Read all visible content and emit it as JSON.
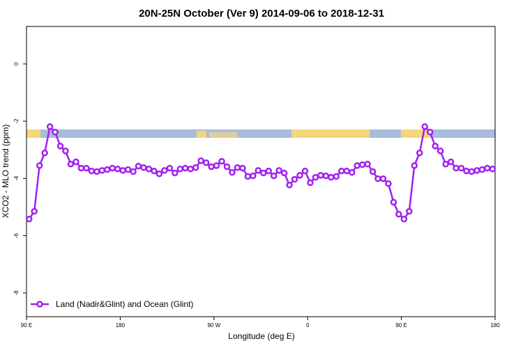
{
  "chart_data": {
    "type": "line",
    "title": "20N-25N October (Ver 9)   2014-09-06 to 2018-12-31",
    "xlabel": "Longitude (deg E)",
    "ylabel": "XCO2 - MLO trend (ppm)",
    "xlim": [
      90,
      540
    ],
    "ylim": [
      -8.83,
      1.31
    ],
    "xticks": [
      {
        "value": 90,
        "label": "90 E"
      },
      {
        "value": 180,
        "label": "180"
      },
      {
        "value": 270,
        "label": "90 W"
      },
      {
        "value": 360,
        "label": "0"
      },
      {
        "value": 450,
        "label": "90 E"
      },
      {
        "value": 540,
        "label": "180"
      }
    ],
    "yticks": [
      0,
      -2,
      -4,
      -6,
      -8
    ],
    "grid": false,
    "legend": "bottom-left",
    "x": [
      92.5,
      97.5,
      102.5,
      107.5,
      112.5,
      117.5,
      122.5,
      127.5,
      132.5,
      137.5,
      142.5,
      147.5,
      152.5,
      157.5,
      162.5,
      167.5,
      172.5,
      177.5,
      182.5,
      187.5,
      192.5,
      197.5,
      202.5,
      207.5,
      212.5,
      217.5,
      222.5,
      227.5,
      232.5,
      237.5,
      242.5,
      247.5,
      252.5,
      257.5,
      262.5,
      267.5,
      272.5,
      277.5,
      282.5,
      287.5,
      292.5,
      297.5,
      302.5,
      307.5,
      312.5,
      317.5,
      322.5,
      327.5,
      332.5,
      337.5,
      342.5,
      347.5,
      352.5,
      357.5,
      362.5,
      367.5,
      372.5,
      377.5,
      382.5,
      387.5,
      392.5,
      397.5,
      402.5,
      407.5,
      412.5,
      417.5,
      422.5,
      427.5,
      432.5,
      437.5,
      442.5,
      447.5,
      452.5,
      457.5,
      462.5,
      467.5,
      472.5,
      477.5,
      482.5,
      487.5,
      492.5,
      497.5,
      502.5,
      507.5,
      512.5,
      517.5,
      522.5,
      527.5,
      532.5,
      537.5
    ],
    "series": [
      {
        "name": "Land (Nadir&Glint) and Ocean (Glint)",
        "color": "#a020f0",
        "values": [
          -5.42,
          -5.15,
          -3.55,
          -3.11,
          -2.19,
          -2.38,
          -2.87,
          -3.04,
          -3.5,
          -3.42,
          -3.64,
          -3.64,
          -3.74,
          -3.76,
          -3.72,
          -3.69,
          -3.64,
          -3.67,
          -3.72,
          -3.69,
          -3.76,
          -3.57,
          -3.62,
          -3.67,
          -3.74,
          -3.84,
          -3.72,
          -3.64,
          -3.81,
          -3.67,
          -3.64,
          -3.67,
          -3.62,
          -3.38,
          -3.45,
          -3.59,
          -3.55,
          -3.4,
          -3.59,
          -3.79,
          -3.62,
          -3.64,
          -3.93,
          -3.91,
          -3.72,
          -3.81,
          -3.74,
          -3.91,
          -3.72,
          -3.81,
          -4.23,
          -4.03,
          -3.89,
          -3.74,
          -4.15,
          -3.96,
          -3.89,
          -3.91,
          -3.96,
          -3.93,
          -3.74,
          -3.74,
          -3.79,
          -3.55,
          -3.52,
          -3.5,
          -3.76,
          -4.01,
          -4.01,
          -4.18,
          -4.83,
          -5.25,
          -5.42,
          -5.15,
          -3.55,
          -3.11,
          -2.19,
          -2.38,
          -2.87,
          -3.04,
          -3.5,
          -3.42,
          -3.64,
          -3.64,
          -3.74,
          -3.76,
          -3.72,
          -3.69,
          -3.64,
          -3.67
        ]
      }
    ]
  }
}
